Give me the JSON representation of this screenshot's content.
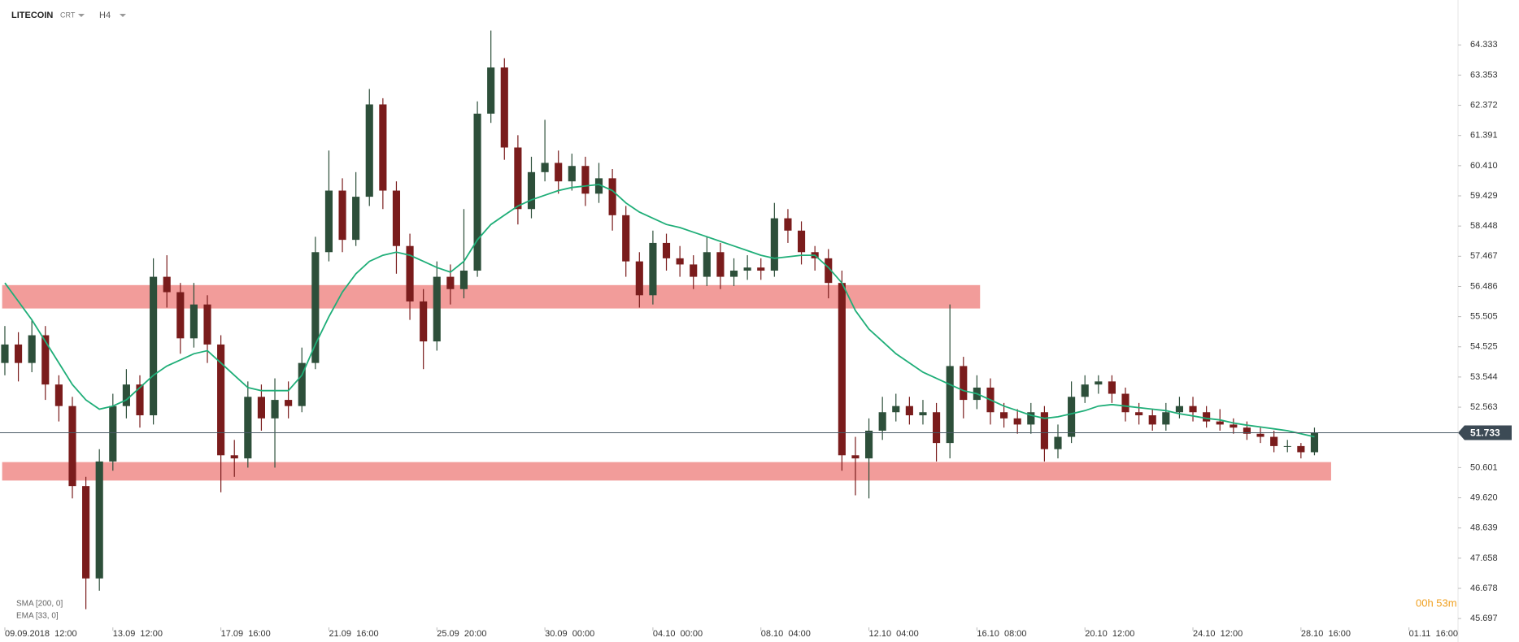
{
  "chart_data": {
    "type": "candlestick",
    "symbol": "LITECOIN",
    "source": "CRT",
    "timeframe": "H4",
    "timer": "00h 53m",
    "xlim": [
      -1.08,
      322.9
    ],
    "ylim": [
      45.41,
      65.0
    ],
    "xticks": [
      {
        "value": 0,
        "label": "09.09.2018  12:00"
      },
      {
        "value": 24,
        "label": "13.09  12:00"
      },
      {
        "value": 48,
        "label": "17.09  16:00"
      },
      {
        "value": 72,
        "label": "21.09  16:00"
      },
      {
        "value": 96,
        "label": "25.09  20:00"
      },
      {
        "value": 120,
        "label": "30.09  00:00"
      },
      {
        "value": 144,
        "label": "04.10  00:00"
      },
      {
        "value": 168,
        "label": "08.10  04:00"
      },
      {
        "value": 192,
        "label": "12.10  04:00"
      },
      {
        "value": 216,
        "label": "16.10  08:00"
      },
      {
        "value": 240,
        "label": "20.10  12:00"
      },
      {
        "value": 264,
        "label": "24.10  12:00"
      },
      {
        "value": 288,
        "label": "28.10  16:00"
      },
      {
        "value": 312,
        "label": "01.11  16:00"
      }
    ],
    "yticks": [
      64.333,
      63.353,
      62.372,
      61.391,
      {
        "value": 60.41,
        "label": "60.410"
      },
      59.429,
      58.448,
      57.467,
      56.486,
      55.505,
      54.525,
      53.544,
      52.563,
      50.601,
      {
        "value": 49.62,
        "label": "49.620"
      },
      48.639,
      47.658,
      46.678,
      45.697
    ],
    "current_price": 51.733,
    "up_color": "#2d4f3a",
    "down_color": "#7a1c1c",
    "zone_color": "#f29c9a",
    "zones": [
      {
        "x": [
          -0.6,
          216.7
        ],
        "y": [
          55.77,
          56.53
        ]
      },
      {
        "x": [
          -0.6,
          294.7
        ],
        "y": [
          50.18,
          50.78
        ]
      }
    ],
    "x": [
      0,
      3,
      6,
      9,
      12,
      15,
      18,
      21,
      24,
      27,
      30,
      33,
      36,
      39,
      42,
      45,
      48,
      51,
      54,
      57,
      60,
      63,
      66,
      69,
      72,
      75,
      78,
      81,
      84,
      87,
      90,
      93,
      96,
      99,
      102,
      105,
      108,
      111,
      114,
      117,
      120,
      123,
      126,
      129,
      132,
      135,
      138,
      141,
      144,
      147,
      150,
      153,
      156,
      159,
      162,
      165,
      168,
      171,
      174,
      177,
      180,
      183,
      186,
      189,
      192,
      195,
      198,
      201,
      204,
      207,
      210,
      213,
      216,
      219,
      222,
      225,
      228,
      231,
      234,
      237,
      240,
      243,
      246,
      249,
      252,
      255,
      258,
      261,
      264,
      267,
      270,
      273,
      276,
      279,
      282,
      285,
      288,
      291
    ],
    "open": [
      54.0,
      54.6,
      54.0,
      54.9,
      53.3,
      52.6,
      50.0,
      47.0,
      50.8,
      52.6,
      53.3,
      52.3,
      56.8,
      56.3,
      54.8,
      55.9,
      54.6,
      51.0,
      50.9,
      52.9,
      52.2,
      52.8,
      52.6,
      54.0,
      57.6,
      59.6,
      58.0,
      59.4,
      62.4,
      59.6,
      57.8,
      56.0,
      54.7,
      56.8,
      56.4,
      57.0,
      62.1,
      63.6,
      61.0,
      59.0,
      60.2,
      60.5,
      59.9,
      60.4,
      59.5,
      60.0,
      58.8,
      57.3,
      56.2,
      57.9,
      57.4,
      57.2,
      56.8,
      57.6,
      56.8,
      57.0,
      57.1,
      57.0,
      58.7,
      58.3,
      57.6,
      57.4,
      56.6,
      51.0,
      50.9,
      51.8,
      52.4,
      52.6,
      52.3,
      52.4,
      51.4,
      53.9,
      52.8,
      53.2,
      52.4,
      52.2,
      52.0,
      52.4,
      51.2,
      51.6,
      52.9,
      53.3,
      53.4,
      53.0,
      52.4,
      52.3,
      52.0,
      52.4,
      52.6,
      52.4,
      52.1,
      52.0,
      51.9,
      51.7,
      51.6,
      51.3,
      51.3,
      51.1
    ],
    "high": [
      55.2,
      55.0,
      55.4,
      55.2,
      53.6,
      52.9,
      50.3,
      51.2,
      53.0,
      53.8,
      53.6,
      57.4,
      57.5,
      56.6,
      56.6,
      56.2,
      54.9,
      51.5,
      53.4,
      53.3,
      53.5,
      53.4,
      54.5,
      58.1,
      60.9,
      60.0,
      60.2,
      62.9,
      62.6,
      59.9,
      58.2,
      56.4,
      57.3,
      57.2,
      59.0,
      62.5,
      64.8,
      63.9,
      61.4,
      60.7,
      61.9,
      60.9,
      60.8,
      60.7,
      60.5,
      60.3,
      59.1,
      57.6,
      58.3,
      58.2,
      57.8,
      57.5,
      58.1,
      57.9,
      57.4,
      57.5,
      57.4,
      59.2,
      59.0,
      58.6,
      57.8,
      57.7,
      57.0,
      51.6,
      52.2,
      52.9,
      53.0,
      52.9,
      52.8,
      52.7,
      55.9,
      54.2,
      53.6,
      53.5,
      52.7,
      52.5,
      52.7,
      52.6,
      52.0,
      53.4,
      53.6,
      53.6,
      53.6,
      53.2,
      52.7,
      52.5,
      52.7,
      52.9,
      52.9,
      52.6,
      52.5,
      52.2,
      52.1,
      51.9,
      51.8,
      51.5,
      51.4,
      51.9
    ],
    "low": [
      53.6,
      53.4,
      53.7,
      52.8,
      52.1,
      49.6,
      46.0,
      46.6,
      50.5,
      52.2,
      51.9,
      52.0,
      55.8,
      54.3,
      54.5,
      54.0,
      49.8,
      50.3,
      50.6,
      51.8,
      50.6,
      52.2,
      52.4,
      53.8,
      57.3,
      57.6,
      57.8,
      59.1,
      59.0,
      56.9,
      55.4,
      53.8,
      54.4,
      55.9,
      56.1,
      56.8,
      61.8,
      60.6,
      58.5,
      58.7,
      59.9,
      59.5,
      59.6,
      59.1,
      59.2,
      58.3,
      56.8,
      55.8,
      55.9,
      57.0,
      56.8,
      56.4,
      56.5,
      56.4,
      56.5,
      56.7,
      56.7,
      56.8,
      57.9,
      57.2,
      57.0,
      56.1,
      50.5,
      49.7,
      49.6,
      51.5,
      52.1,
      52.0,
      52.0,
      50.8,
      50.9,
      52.2,
      52.5,
      52.0,
      51.9,
      51.7,
      51.7,
      50.8,
      50.9,
      51.4,
      52.7,
      53.0,
      52.7,
      52.1,
      52.0,
      51.8,
      51.8,
      52.2,
      52.1,
      51.9,
      51.8,
      51.7,
      51.5,
      51.4,
      51.1,
      51.1,
      50.9,
      51.0
    ],
    "close": [
      54.6,
      54.0,
      54.9,
      53.3,
      52.6,
      50.0,
      47.0,
      50.8,
      52.6,
      53.3,
      52.3,
      56.8,
      56.3,
      54.8,
      55.9,
      54.6,
      51.0,
      50.9,
      52.9,
      52.2,
      52.8,
      52.6,
      54.0,
      57.6,
      59.6,
      58.0,
      59.4,
      62.4,
      59.6,
      57.8,
      56.0,
      54.7,
      56.8,
      56.4,
      57.0,
      62.1,
      63.6,
      61.0,
      59.0,
      60.2,
      60.5,
      59.9,
      60.4,
      59.5,
      60.0,
      58.8,
      57.3,
      56.2,
      57.9,
      57.4,
      57.2,
      56.8,
      57.6,
      56.8,
      57.0,
      57.1,
      57.0,
      58.7,
      58.3,
      57.6,
      57.4,
      56.6,
      51.0,
      50.9,
      51.8,
      52.4,
      52.6,
      52.3,
      52.4,
      51.4,
      53.9,
      52.8,
      53.2,
      52.4,
      52.2,
      52.0,
      52.4,
      51.2,
      51.6,
      52.9,
      53.3,
      53.4,
      53.0,
      52.4,
      52.3,
      52.0,
      52.4,
      52.6,
      52.4,
      52.1,
      52.0,
      51.9,
      51.7,
      51.6,
      51.3,
      51.3,
      51.1,
      51.733
    ],
    "indicators": [
      {
        "name": "SMA [200, 0]"
      },
      {
        "name": "EMA [33, 0]",
        "color": "#1fae78",
        "values": [
          56.6,
          56.0,
          55.4,
          54.7,
          54.0,
          53.3,
          52.8,
          52.5,
          52.6,
          52.8,
          53.2,
          53.6,
          53.9,
          54.1,
          54.3,
          54.4,
          54.0,
          53.6,
          53.2,
          53.1,
          53.1,
          53.1,
          53.6,
          54.6,
          55.5,
          56.3,
          56.9,
          57.3,
          57.5,
          57.6,
          57.5,
          57.3,
          57.1,
          56.95,
          57.3,
          58.0,
          58.5,
          58.8,
          59.1,
          59.3,
          59.45,
          59.6,
          59.7,
          59.75,
          59.8,
          59.6,
          59.2,
          58.9,
          58.7,
          58.5,
          58.4,
          58.25,
          58.1,
          57.95,
          57.8,
          57.65,
          57.5,
          57.4,
          57.45,
          57.5,
          57.5,
          57.1,
          56.6,
          55.7,
          55.1,
          54.7,
          54.3,
          54.0,
          53.7,
          53.5,
          53.3,
          53.1,
          53.0,
          52.8,
          52.6,
          52.45,
          52.3,
          52.2,
          52.25,
          52.35,
          52.45,
          52.6,
          52.65,
          52.6,
          52.55,
          52.5,
          52.45,
          52.35,
          52.28,
          52.2,
          52.15,
          52.05,
          51.98,
          51.92,
          51.86,
          51.8,
          51.7,
          51.6
        ]
      }
    ]
  }
}
